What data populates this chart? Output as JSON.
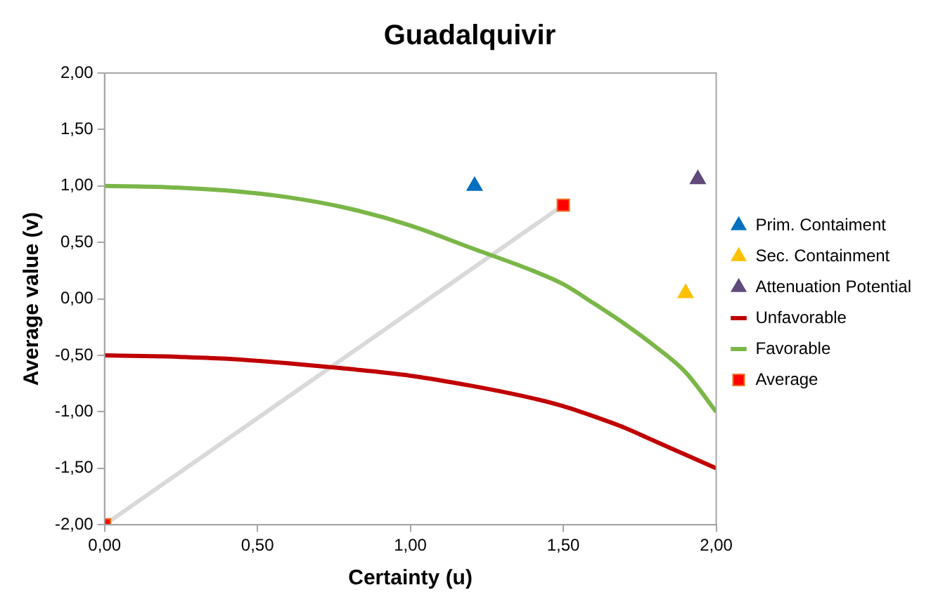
{
  "chart_data": {
    "type": "line",
    "title": "Guadalquivir",
    "xlabel": "Certainty (u)",
    "ylabel": "Average value (v)",
    "xlim": [
      0,
      2
    ],
    "xticks": [
      {
        "value": 0,
        "label": "0,00"
      },
      {
        "value": 0.5,
        "label": "0,50"
      },
      {
        "value": 1,
        "label": "1,00"
      },
      {
        "value": 1.5,
        "label": "1,50"
      },
      {
        "value": 2,
        "label": "2,00"
      }
    ],
    "ylim": [
      -2,
      2
    ],
    "yticks": [
      {
        "value": -2,
        "label": "-2,00"
      },
      {
        "value": -1.5,
        "label": "-1,50"
      },
      {
        "value": -1,
        "label": "-1,00"
      },
      {
        "value": -0.5,
        "label": "-0,50"
      },
      {
        "value": 0,
        "label": "0,00"
      },
      {
        "value": 0.5,
        "label": "0,50"
      },
      {
        "value": 1,
        "label": "1,00"
      },
      {
        "value": 1.5,
        "label": "1,50"
      },
      {
        "value": 2,
        "label": "2,00"
      }
    ],
    "grid": false,
    "legend": "right",
    "series": [
      {
        "name": "Prim. Contaiment",
        "type": "scatter",
        "marker": "triangle",
        "color": "#0070c0",
        "x": [
          1.21
        ],
        "values": [
          1.0
        ]
      },
      {
        "name": "Sec. Containment",
        "type": "scatter",
        "marker": "triangle",
        "color": "#ffc000",
        "x": [
          1.9
        ],
        "values": [
          0.05
        ]
      },
      {
        "name": "Attenuation Potential",
        "type": "scatter",
        "marker": "triangle",
        "color": "#604a7b",
        "x": [
          1.94
        ],
        "values": [
          1.06
        ]
      },
      {
        "name": "Unfavorable",
        "marker": "none",
        "color": "#c00000",
        "x": [
          0,
          0.2,
          0.4,
          0.6,
          0.8,
          1,
          1.2,
          1.4,
          1.5,
          1.6,
          1.7,
          1.8,
          1.9,
          2
        ],
        "values": [
          -0.5,
          -0.51,
          -0.53,
          -0.57,
          -0.62,
          -0.68,
          -0.77,
          -0.88,
          -0.95,
          -1.04,
          -1.14,
          -1.26,
          -1.38,
          -1.5
        ]
      },
      {
        "name": "Favorable",
        "marker": "none",
        "color": "#7ab648",
        "x": [
          0,
          0.2,
          0.4,
          0.6,
          0.8,
          1,
          1.2,
          1.4,
          1.5,
          1.6,
          1.7,
          1.8,
          1.9,
          2
        ],
        "values": [
          1.0,
          0.99,
          0.96,
          0.9,
          0.8,
          0.65,
          0.45,
          0.25,
          0.13,
          -0.04,
          -0.22,
          -0.42,
          -0.65,
          -1.0
        ]
      },
      {
        "name": "Average",
        "marker": "square",
        "color": "#d9d9d9",
        "colors": [
          "#ff0000",
          "#ff0000"
        ],
        "x": [
          0,
          1.5
        ],
        "values": [
          -2,
          0.83
        ]
      }
    ]
  }
}
